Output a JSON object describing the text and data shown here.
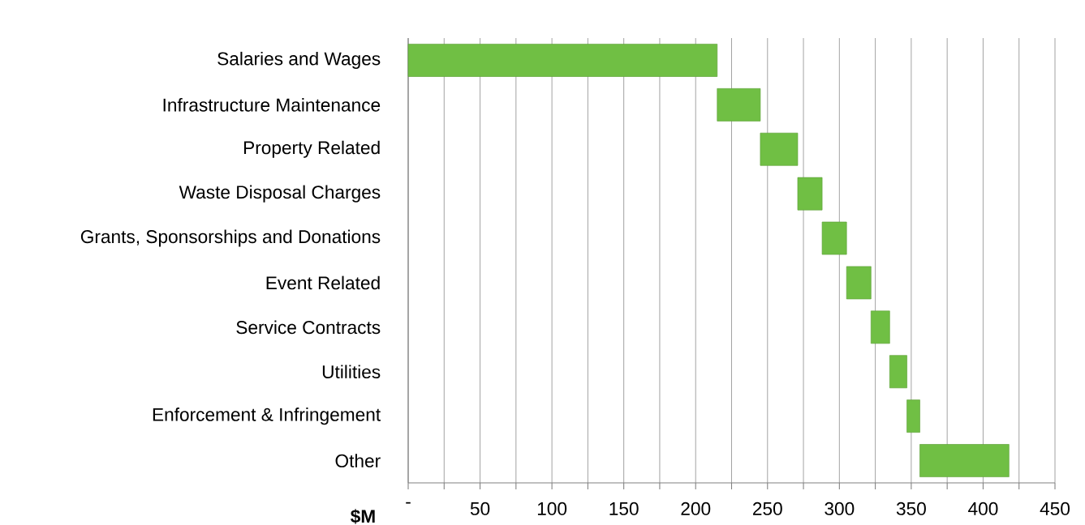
{
  "chart_data": {
    "type": "bar",
    "orientation": "horizontal",
    "xlabel": "$M",
    "categories": [
      "Salaries and Wages",
      "Infrastructure Maintenance",
      "Property Related",
      "Waste Disposal Charges",
      "Grants, Sponsorships and Donations",
      "Event Related",
      "Service Contracts",
      "Utilities",
      "Enforcement & Infringement",
      "Other"
    ],
    "base": [
      0,
      215,
      245,
      271,
      288,
      305,
      322,
      335,
      347,
      356
    ],
    "values": [
      215,
      30,
      26,
      17,
      17,
      17,
      13,
      12,
      9,
      62
    ],
    "color": "#70bf44",
    "xlim": [
      0,
      450
    ],
    "xticks": [
      {
        "value": 0,
        "label": "-"
      },
      {
        "value": 25,
        "label": null
      },
      50,
      {
        "value": 75,
        "label": null
      },
      100,
      {
        "value": 125,
        "label": null
      },
      150,
      {
        "value": 175,
        "label": null
      },
      200,
      {
        "value": 225,
        "label": null
      },
      250,
      {
        "value": 275,
        "label": null
      },
      300,
      {
        "value": 325,
        "label": null
      },
      350,
      {
        "value": 375,
        "label": null
      },
      400,
      {
        "value": 425,
        "label": null
      },
      450
    ],
    "grid": "x"
  }
}
